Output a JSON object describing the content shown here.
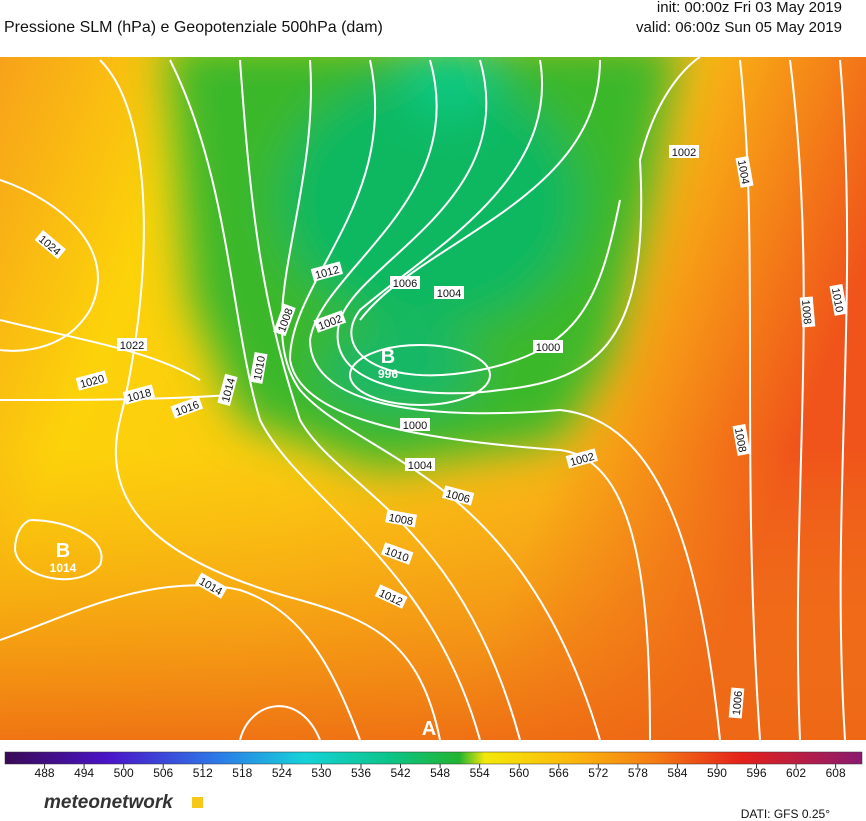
{
  "header": {
    "title": "Pressione SLM (hPa) e Geopotenziale 500hPa (dam)",
    "init": "init: 00:00z Fri 03 May 2019",
    "valid": "valid: 06:00z Sun 05 May 2019"
  },
  "isobar_labels": [
    1024,
    1022,
    1020,
    1018,
    1016,
    1014,
    1010,
    1008,
    1012,
    1006,
    1004,
    1002,
    1000,
    1000,
    1004,
    1002,
    1006,
    1008,
    1010,
    1012,
    1014,
    1002,
    1004,
    1010,
    1008,
    1008,
    1006
  ],
  "centers": [
    {
      "letter": "B",
      "value": 996
    },
    {
      "letter": "B",
      "value": 1014
    },
    {
      "letter": "A"
    }
  ],
  "colorbar": {
    "range": [
      482,
      612
    ],
    "ticks": [
      488,
      494,
      500,
      506,
      512,
      518,
      524,
      530,
      536,
      542,
      548,
      554,
      560,
      566,
      572,
      578,
      584,
      590,
      596,
      602,
      608
    ]
  },
  "footer": {
    "logo": "meteonetwork",
    "source": "DATI:  GFS  0.25°"
  }
}
